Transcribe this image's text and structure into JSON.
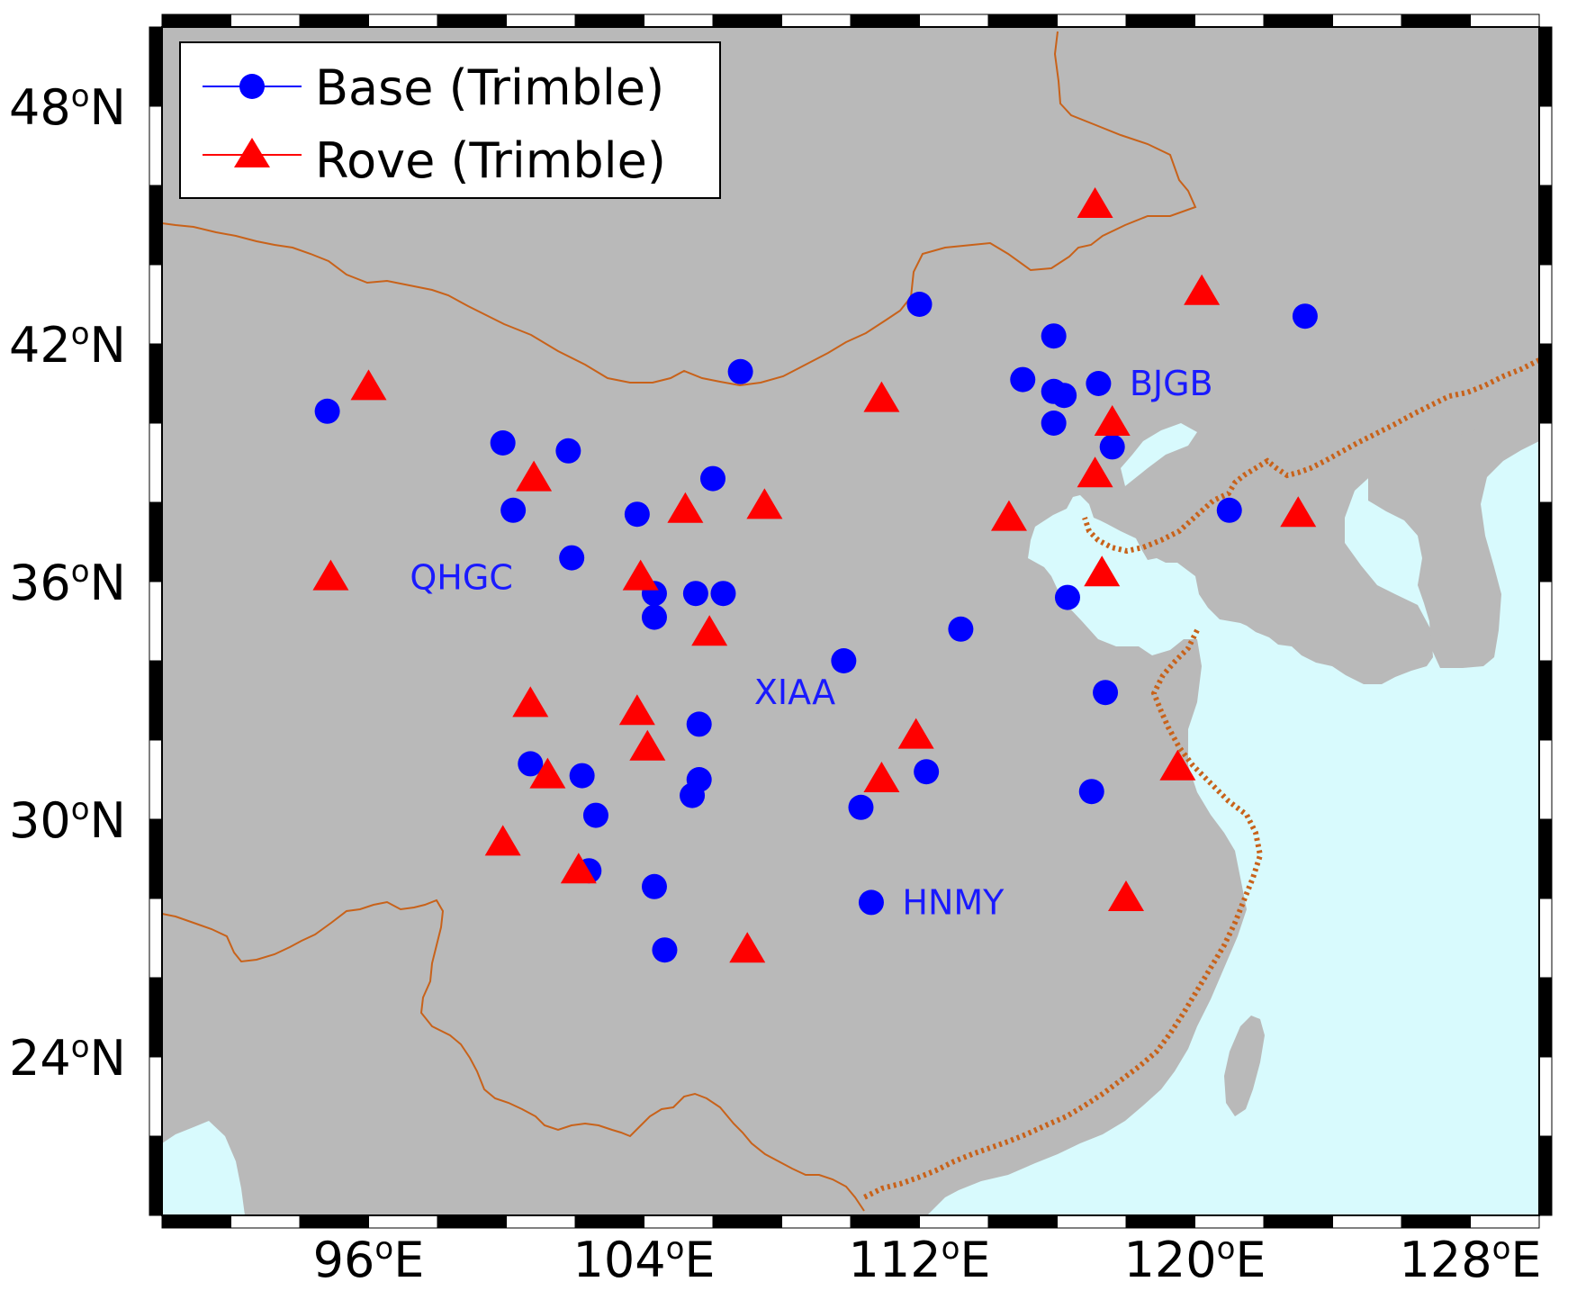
{
  "map": {
    "type": "scatter-map",
    "lon_range": [
      90,
      130
    ],
    "lat_range": [
      20,
      50
    ],
    "colors": {
      "land": "#b9b9b9",
      "sea": "#d8fafd",
      "border": "#c8621a",
      "base": "#0000ff",
      "rove": "#ff0000",
      "label": "#1a1aff"
    },
    "x_ticks": [
      {
        "value": 96,
        "deg": "96",
        "hemi": "E"
      },
      {
        "value": 104,
        "deg": "104",
        "hemi": "E"
      },
      {
        "value": 112,
        "deg": "112",
        "hemi": "E"
      },
      {
        "value": 120,
        "deg": "120",
        "hemi": "E"
      },
      {
        "value": 128,
        "deg": "128",
        "hemi": "E"
      }
    ],
    "y_ticks": [
      {
        "value": 48,
        "deg": "48",
        "hemi": "N"
      },
      {
        "value": 42,
        "deg": "42",
        "hemi": "N"
      },
      {
        "value": 36,
        "deg": "36",
        "hemi": "N"
      },
      {
        "value": 30,
        "deg": "30",
        "hemi": "N"
      },
      {
        "value": 24,
        "deg": "24",
        "hemi": "N"
      }
    ],
    "degree_symbol": "o"
  },
  "legend": {
    "position": "top-left",
    "entries": [
      {
        "label": "Base (Trimble)",
        "marker": "circle"
      },
      {
        "label": "Rove (Trimble)",
        "marker": "triangle"
      }
    ]
  },
  "chart_data": {
    "type": "scatter",
    "series": [
      {
        "name": "Base (Trimble)",
        "marker": "circle",
        "points": [
          [
            94.8,
            40.3
          ],
          [
            99.9,
            39.5
          ],
          [
            101.8,
            39.3
          ],
          [
            100.2,
            37.8
          ],
          [
            101.9,
            36.6
          ],
          [
            103.8,
            37.7
          ],
          [
            104.3,
            35.7
          ],
          [
            104.3,
            35.1
          ],
          [
            105.5,
            35.7
          ],
          [
            106.3,
            35.7
          ],
          [
            106.0,
            38.6
          ],
          [
            106.8,
            41.3
          ],
          [
            109.8,
            34.0
          ],
          [
            105.6,
            32.4
          ],
          [
            100.7,
            31.4
          ],
          [
            102.2,
            31.1
          ],
          [
            102.6,
            30.1
          ],
          [
            105.6,
            31.0
          ],
          [
            105.4,
            30.6
          ],
          [
            110.3,
            30.3
          ],
          [
            102.4,
            28.7
          ],
          [
            104.3,
            28.3
          ],
          [
            104.6,
            26.7
          ],
          [
            110.6,
            27.9
          ],
          [
            112.0,
            43.0
          ],
          [
            115.0,
            41.1
          ],
          [
            115.9,
            42.2
          ],
          [
            115.9,
            40.8
          ],
          [
            116.2,
            40.7
          ],
          [
            115.9,
            40.0
          ],
          [
            117.2,
            41.0
          ],
          [
            117.6,
            39.4
          ],
          [
            113.2,
            34.8
          ],
          [
            116.3,
            35.6
          ],
          [
            117.4,
            33.2
          ],
          [
            112.2,
            31.2
          ],
          [
            117.0,
            30.7
          ],
          [
            121.0,
            37.8
          ],
          [
            123.2,
            42.7
          ]
        ]
      },
      {
        "name": "Rove (Trimble)",
        "marker": "triangle",
        "points": [
          [
            96.0,
            40.9
          ],
          [
            94.9,
            36.1
          ],
          [
            100.8,
            38.6
          ],
          [
            100.7,
            32.9
          ],
          [
            101.2,
            31.1
          ],
          [
            99.9,
            29.4
          ],
          [
            102.1,
            28.7
          ],
          [
            103.9,
            36.1
          ],
          [
            103.8,
            32.7
          ],
          [
            104.1,
            31.8
          ],
          [
            105.2,
            37.8
          ],
          [
            105.9,
            34.7
          ],
          [
            107.5,
            37.9
          ],
          [
            107.0,
            26.7
          ],
          [
            110.9,
            40.6
          ],
          [
            111.9,
            32.1
          ],
          [
            110.9,
            31.0
          ],
          [
            114.6,
            37.6
          ],
          [
            117.1,
            45.5
          ],
          [
            120.2,
            43.3
          ],
          [
            117.1,
            38.7
          ],
          [
            117.6,
            40.0
          ],
          [
            117.3,
            36.2
          ],
          [
            119.5,
            31.3
          ],
          [
            118.0,
            28.0
          ],
          [
            123.0,
            37.7
          ]
        ]
      }
    ],
    "annotations": [
      {
        "text": "BJGB",
        "lon": 118.1,
        "lat": 41.0
      },
      {
        "text": "QHGC",
        "lon": 97.2,
        "lat": 36.1
      },
      {
        "text": "XIAA",
        "lon": 107.2,
        "lat": 33.2
      },
      {
        "text": "HNMY",
        "lon": 111.5,
        "lat": 27.9
      }
    ]
  }
}
